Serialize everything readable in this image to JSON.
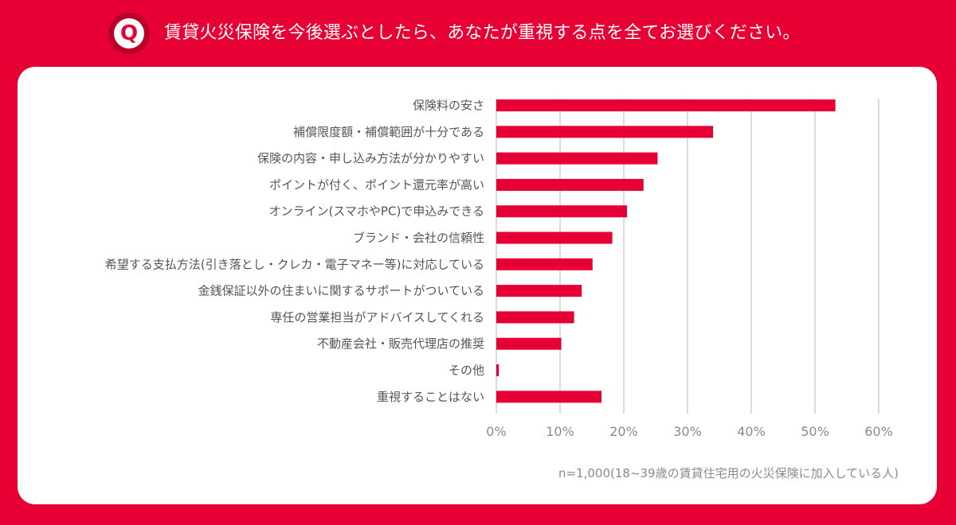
{
  "header": {
    "badge": "Q",
    "title": "賃貸火災保険を今後選ぶとしたら、あなたが重視する点を全てお選びください。"
  },
  "note": "n=1,000(18~39歳の賃貸住宅用の火災保険に加入している人)",
  "colors": {
    "accent": "#e60033",
    "bar": "#e60033",
    "grid": "#cfcfcf"
  },
  "chart_data": {
    "type": "bar",
    "orientation": "horizontal",
    "title": "",
    "xlabel": "",
    "ylabel": "",
    "xlim": [
      0,
      60
    ],
    "grid": true,
    "ticks": [
      "0%",
      "10%",
      "20%",
      "30%",
      "40%",
      "50%",
      "60%"
    ],
    "tick_values": [
      0,
      10,
      20,
      30,
      40,
      50,
      60
    ],
    "categories": [
      "保険料の安さ",
      "補償限度額・補償範囲が十分である",
      "保険の内容・申し込み方法が分かりやすい",
      "ポイントが付く、ポイント還元率が高い",
      "オンライン(スマホやPC)で申込みできる",
      "ブランド・会社の信頼性",
      "希望する支払方法(引き落とし・クレカ・電子マネー等)に対応している",
      "金銭保証以外の住まいに関するサポートがついている",
      "専任の営業担当がアドバイスしてくれる",
      "不動産会社・販売代理店の推奨",
      "その他",
      "重視することはない"
    ],
    "values": [
      53.2,
      34.0,
      25.3,
      23.1,
      20.5,
      18.2,
      15.1,
      13.4,
      12.2,
      10.2,
      0.4,
      16.5
    ]
  }
}
